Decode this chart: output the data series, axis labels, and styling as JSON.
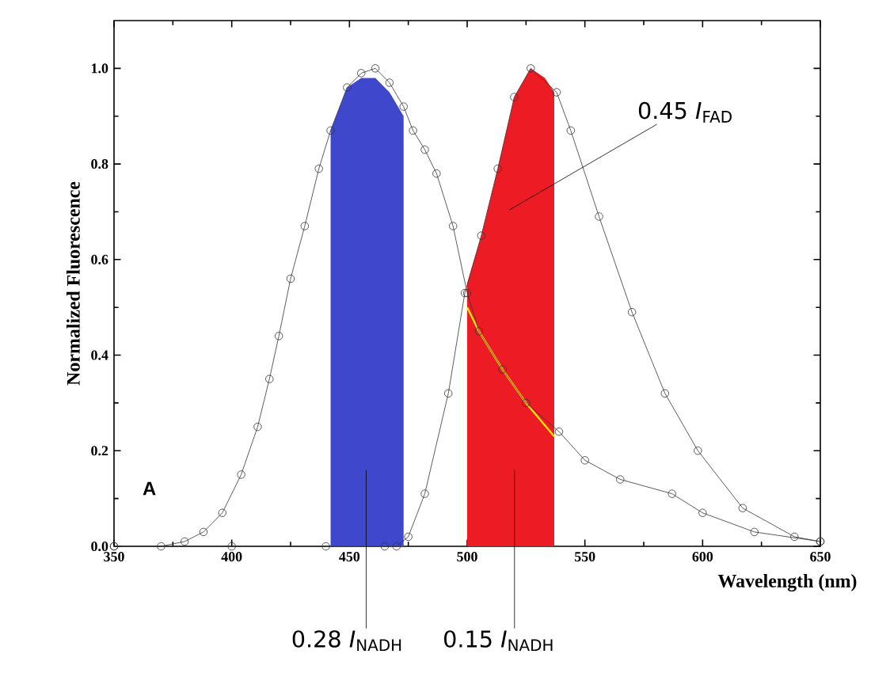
{
  "chart_data": {
    "type": "line",
    "xlabel": "Wavelength (nm)",
    "ylabel": "Normalized Fluorescence",
    "xlim": [
      350,
      650
    ],
    "xticks": [
      350,
      400,
      450,
      500,
      550,
      600,
      650
    ],
    "ylim": [
      0,
      1.1
    ],
    "yticks": [
      {
        "value": 0,
        "label": "0.0"
      },
      {
        "value": 0.2,
        "label": "0.2"
      },
      {
        "value": 0.4,
        "label": "0.4"
      },
      {
        "value": 0.6,
        "label": "0.6"
      },
      {
        "value": 0.8,
        "label": "0.8"
      },
      {
        "value": 1.0,
        "label": "1.0"
      }
    ],
    "grid": false,
    "marker": "circle",
    "series": [
      {
        "type": "area",
        "marker": "none",
        "color": "#3f48cc",
        "x": [
          442,
          449,
          455,
          461,
          467,
          473
        ],
        "values": [
          0.87,
          0.96,
          0.98,
          0.98,
          0.95,
          0.9
        ]
      },
      {
        "type": "area",
        "marker": "none",
        "color": "#ed1c24",
        "x": [
          500,
          506,
          513,
          520,
          527,
          533,
          537
        ],
        "values": [
          0.55,
          0.65,
          0.79,
          0.94,
          1.0,
          0.98,
          0.95
        ]
      },
      {
        "color": "#ffe600",
        "marker": "none",
        "x": [
          500,
          505,
          515,
          525,
          537
        ],
        "values": [
          0.5,
          0.45,
          0.37,
          0.3,
          0.23
        ]
      },
      {
        "color": "#333333",
        "x": [
          350,
          370,
          380,
          388,
          396,
          404,
          411,
          416,
          420,
          425,
          431,
          437,
          442,
          449,
          455,
          461,
          467,
          473,
          477,
          482,
          487,
          494,
          500,
          505,
          515,
          525,
          539,
          550,
          565,
          587,
          600,
          622,
          650
        ],
        "values": [
          0.0,
          0.0,
          0.01,
          0.03,
          0.07,
          0.15,
          0.25,
          0.35,
          0.44,
          0.56,
          0.67,
          0.79,
          0.87,
          0.96,
          0.99,
          1.0,
          0.97,
          0.92,
          0.87,
          0.83,
          0.78,
          0.67,
          0.53,
          0.45,
          0.37,
          0.3,
          0.24,
          0.18,
          0.14,
          0.11,
          0.07,
          0.03,
          0.01
        ]
      },
      {
        "color": "#333333",
        "x": [
          350,
          400,
          440,
          465,
          470,
          475,
          482,
          492,
          499,
          506,
          513,
          520,
          527,
          538,
          544,
          556,
          570,
          584,
          598,
          617,
          639,
          650
        ],
        "values": [
          0.0,
          0.0,
          0.0,
          0.0,
          0.0,
          0.02,
          0.11,
          0.32,
          0.53,
          0.65,
          0.79,
          0.94,
          1.0,
          0.95,
          0.87,
          0.69,
          0.49,
          0.32,
          0.2,
          0.08,
          0.02,
          0.01
        ]
      }
    ],
    "annotations": [
      "0.45 *I*$_{FAD}$",
      "0.28 *I*$_{NADH}$",
      "0.15 *I*$_{NADH}$",
      "A"
    ]
  }
}
